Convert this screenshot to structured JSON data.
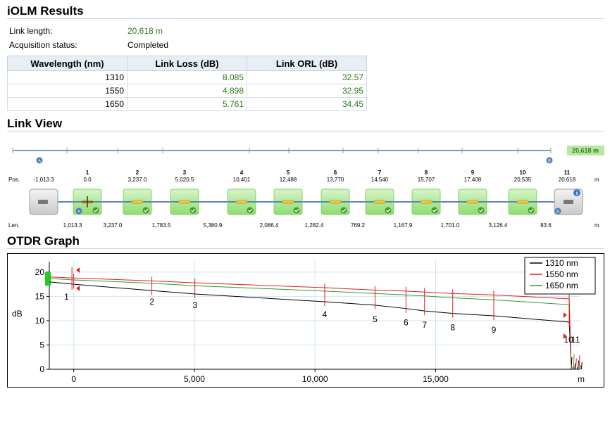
{
  "results": {
    "title": "iOLM Results",
    "link_length_label": "Link length:",
    "link_length_value": "20,618 m",
    "acq_label": "Acquisition status:",
    "acq_value": "Completed",
    "table": {
      "headers": [
        "Wavelength (nm)",
        "Link Loss (dB)",
        "Link ORL (dB)"
      ],
      "rows": [
        [
          "1310",
          "8.085",
          "32.57"
        ],
        [
          "1550",
          "4.898",
          "32.95"
        ],
        [
          "1650",
          "5.761",
          "34.45"
        ]
      ]
    }
  },
  "link_view": {
    "title": "Link View",
    "total_badge": "20,618 m",
    "marker_a": "A",
    "marker_b": "B",
    "pos_label": "Pos.",
    "len_label": "Len.",
    "unit": "m",
    "start_pos": "-1,013.3",
    "events": [
      {
        "num": "1",
        "pos": "0.0"
      },
      {
        "num": "2",
        "pos": "3,237.0"
      },
      {
        "num": "3",
        "pos": "5,020.5"
      },
      {
        "num": "4",
        "pos": "10,401"
      },
      {
        "num": "5",
        "pos": "12,488"
      },
      {
        "num": "6",
        "pos": "13,770"
      },
      {
        "num": "7",
        "pos": "14,540"
      },
      {
        "num": "8",
        "pos": "15,707"
      },
      {
        "num": "9",
        "pos": "17,408"
      },
      {
        "num": "10",
        "pos": "20,535"
      },
      {
        "num": "11",
        "pos": "20,618"
      }
    ],
    "lengths": [
      "1,013.3",
      "3,237.0",
      "1,783.5",
      "5,380.9",
      "2,086.4",
      "1,282.4",
      "769.2",
      "1,167.9",
      "1,701.0",
      "3,126.4",
      "83.6"
    ],
    "info_icon": "i"
  },
  "otdr": {
    "title": "OTDR Graph",
    "y_label": "dB",
    "x_unit": "m",
    "legend": [
      "1310 nm",
      "1550 nm",
      "1650 nm"
    ],
    "colors": {
      "1310": "#000000",
      "1550": "#e02020",
      "1650": "#2e9b2e"
    },
    "y_ticks": [
      "0",
      "5",
      "10",
      "15",
      "20"
    ],
    "x_ticks": [
      "0",
      "5,000",
      "10,000",
      "15,000"
    ],
    "event_labels": [
      "1",
      "2",
      "3",
      "4",
      "5",
      "6",
      "7",
      "8",
      "9",
      "10",
      "11"
    ]
  },
  "chart_data": {
    "type": "line",
    "xlim": [
      -1013.3,
      21000
    ],
    "ylim": [
      0,
      21
    ],
    "series": [
      {
        "name": "1310 nm",
        "x": [
          -1013.3,
          0,
          3237,
          5020.5,
          10401,
          12488,
          13770,
          14540,
          15707,
          17408,
          20535,
          20618
        ],
        "y": [
          18.0,
          17.5,
          16.2,
          15.5,
          13.9,
          13.2,
          12.5,
          12.0,
          11.5,
          11.0,
          9.7,
          1.0
        ]
      },
      {
        "name": "1550 nm",
        "x": [
          -1013.3,
          0,
          3237,
          5020.5,
          10401,
          12488,
          13770,
          14540,
          15707,
          17408,
          20535,
          20618
        ],
        "y": [
          19.0,
          18.8,
          18.2,
          17.8,
          16.8,
          16.3,
          16.1,
          15.9,
          15.6,
          15.3,
          14.5,
          1.0
        ]
      },
      {
        "name": "1650 nm",
        "x": [
          -1013.3,
          0,
          3237,
          5020.5,
          10401,
          12488,
          13770,
          14540,
          15707,
          17408,
          20535,
          20618
        ],
        "y": [
          18.7,
          18.4,
          17.7,
          17.2,
          16.1,
          15.6,
          15.3,
          15.1,
          14.7,
          14.3,
          13.3,
          1.0
        ]
      }
    ],
    "events_x": [
      0,
      3237,
      5020.5,
      10401,
      12488,
      13770,
      14540,
      15707,
      17408,
      20535,
      20618
    ]
  }
}
